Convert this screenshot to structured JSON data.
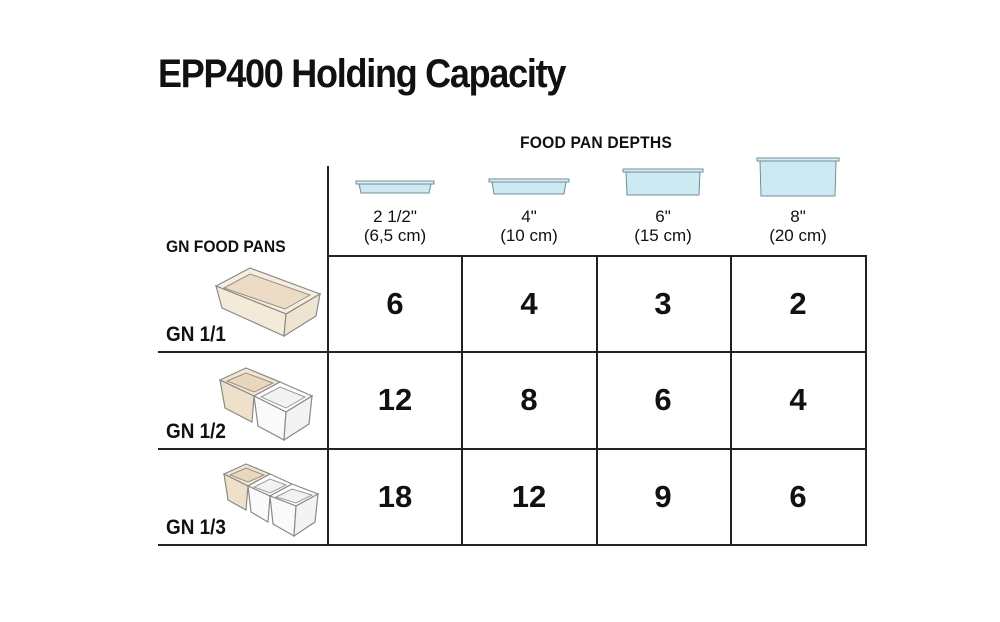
{
  "title": "EPP400 Holding Capacity",
  "column_header": "FOOD PAN DEPTHS",
  "row_header": "GN FOOD PANS",
  "depths": [
    {
      "line1": "2 1/2\"",
      "line2": "(6,5 cm)",
      "icon": "shallow-pan-icon"
    },
    {
      "line1": "4\"",
      "line2": "(10 cm)",
      "icon": "pan-4in-icon"
    },
    {
      "line1": "6\"",
      "line2": "(15 cm)",
      "icon": "pan-6in-icon"
    },
    {
      "line1": "8\"",
      "line2": "(20 cm)",
      "icon": "pan-8in-icon"
    }
  ],
  "rows": [
    {
      "label": "GN 1/1",
      "icon": "gn-1-1-pan-icon",
      "values": [
        "6",
        "4",
        "3",
        "2"
      ]
    },
    {
      "label": "GN 1/2",
      "icon": "gn-1-2-pans-icon",
      "values": [
        "12",
        "8",
        "6",
        "4"
      ]
    },
    {
      "label": "GN 1/3",
      "icon": "gn-1-3-pans-icon",
      "values": [
        "18",
        "12",
        "9",
        "6"
      ]
    }
  ],
  "colors": {
    "pan_fill": "#cde9f1",
    "pan_stroke": "#6f8f99",
    "tray_tan": "#ecdcc6",
    "grid": "#222222"
  }
}
